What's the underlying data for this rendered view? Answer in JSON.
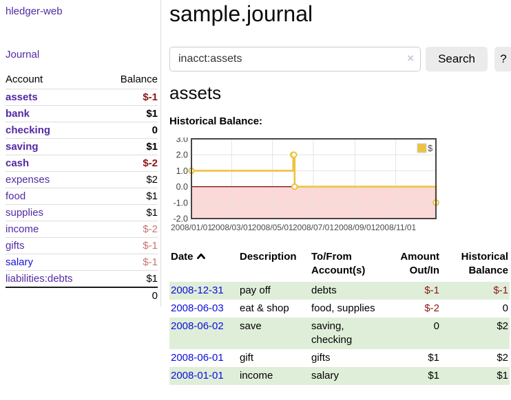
{
  "sidebar": {
    "app_title": "hledger-web",
    "journal_label": "Journal",
    "accounts_table": {
      "headers": {
        "account": "Account",
        "balance": "Balance"
      },
      "rows": [
        {
          "name": "assets",
          "balance": "$-1",
          "depth": 1,
          "bold": true,
          "balance_style": "negative-strong",
          "link": "purple"
        },
        {
          "name": "bank",
          "balance": "$1",
          "depth": 2,
          "bold": true,
          "balance_style": "normal",
          "link": "purple"
        },
        {
          "name": "checking",
          "balance": "0",
          "depth": 3,
          "bold": true,
          "balance_style": "normal",
          "link": "purple"
        },
        {
          "name": "saving",
          "balance": "$1",
          "depth": 3,
          "bold": true,
          "balance_style": "normal",
          "link": "purple"
        },
        {
          "name": "cash",
          "balance": "$-2",
          "depth": 2,
          "bold": true,
          "balance_style": "negative-strong",
          "link": "purple"
        },
        {
          "name": "expenses",
          "balance": "$2",
          "depth": 1,
          "bold": false,
          "balance_style": "normal",
          "link": "purple"
        },
        {
          "name": "food",
          "balance": "$1",
          "depth": 2,
          "bold": false,
          "balance_style": "normal",
          "link": "purple"
        },
        {
          "name": "supplies",
          "balance": "$1",
          "depth": 2,
          "bold": false,
          "balance_style": "normal",
          "link": "purple"
        },
        {
          "name": "income",
          "balance": "$-2",
          "depth": 1,
          "bold": false,
          "balance_style": "negative-muted",
          "link": "purple"
        },
        {
          "name": "gifts",
          "balance": "$-1",
          "depth": 2,
          "bold": false,
          "balance_style": "negative-muted",
          "link": "purple"
        },
        {
          "name": "salary",
          "balance": "$-1",
          "depth": 2,
          "bold": false,
          "balance_style": "negative-muted",
          "link": "blue"
        },
        {
          "name": "liabilities:debts",
          "balance": "$1",
          "depth": 1,
          "bold": false,
          "balance_style": "normal",
          "link": "purple"
        }
      ],
      "total": "0"
    }
  },
  "header": {
    "title": "sample.journal"
  },
  "search": {
    "value": "inacct:assets",
    "clear_icon": "×",
    "search_button": "Search",
    "help_button": "?"
  },
  "account_page": {
    "heading": "assets",
    "chart_label": "Historical Balance:"
  },
  "chart_data": {
    "type": "line",
    "step": true,
    "title": "Historical Balance:",
    "series": [
      {
        "name": "$",
        "color": "#EDC240",
        "points": [
          [
            "2008/01/01",
            1.0
          ],
          [
            "2008/06/01",
            2.0
          ],
          [
            "2008/06/02",
            2.0
          ],
          [
            "2008/06/03",
            0.0
          ],
          [
            "2008/12/31",
            -1.0
          ]
        ]
      }
    ],
    "x_ticks": [
      "2008/01/01",
      "2008/03/01",
      "2008/05/01",
      "2008/07/01",
      "2008/09/01",
      "2008/11/01"
    ],
    "x_range": [
      "2008/01/01",
      "2008/12/31"
    ],
    "y_ticks": [
      3.0,
      2.0,
      1.0,
      0.0,
      -1.0,
      -2.0
    ],
    "ylim": [
      -2,
      3
    ],
    "grid": true,
    "legend": {
      "label": "$",
      "position": "top-right"
    },
    "negative_region_color": "#fcd9d9",
    "zero_line_color": "#7a0000"
  },
  "register_table": {
    "headers": [
      "Date",
      "Description",
      "To/From Account(s)",
      "Amount Out/In",
      "Historical Balance"
    ],
    "sort": {
      "column": "Date",
      "direction": "ascending"
    },
    "rows": [
      {
        "date": "2008-12-31",
        "description": "pay off",
        "accounts": "debts",
        "amount": "$-1",
        "balance": "$-1",
        "amount_negative": true,
        "balance_negative": true,
        "shaded": true
      },
      {
        "date": "2008-06-03",
        "description": "eat & shop",
        "accounts": "food, supplies",
        "amount": "$-2",
        "balance": "0",
        "amount_negative": true,
        "balance_negative": false,
        "shaded": false
      },
      {
        "date": "2008-06-02",
        "description": "save",
        "accounts": "saving, checking",
        "amount": "0",
        "balance": "$2",
        "amount_negative": false,
        "balance_negative": false,
        "shaded": true
      },
      {
        "date": "2008-06-01",
        "description": "gift",
        "accounts": "gifts",
        "amount": "$1",
        "balance": "$2",
        "amount_negative": false,
        "balance_negative": false,
        "shaded": false
      },
      {
        "date": "2008-01-01",
        "description": "income",
        "accounts": "salary",
        "amount": "$1",
        "balance": "$1",
        "amount_negative": false,
        "balance_negative": false,
        "shaded": true
      }
    ]
  },
  "colors": {
    "link_purple": "#5229a3",
    "link_blue": "#0b0be0",
    "negative_strong": "#8e1414",
    "negative_muted": "#c47474",
    "row_green": "#dfeed8",
    "chart_gold": "#EDC240",
    "chart_negative_bg": "#fcd9d9",
    "zero_line": "#7a0000"
  }
}
